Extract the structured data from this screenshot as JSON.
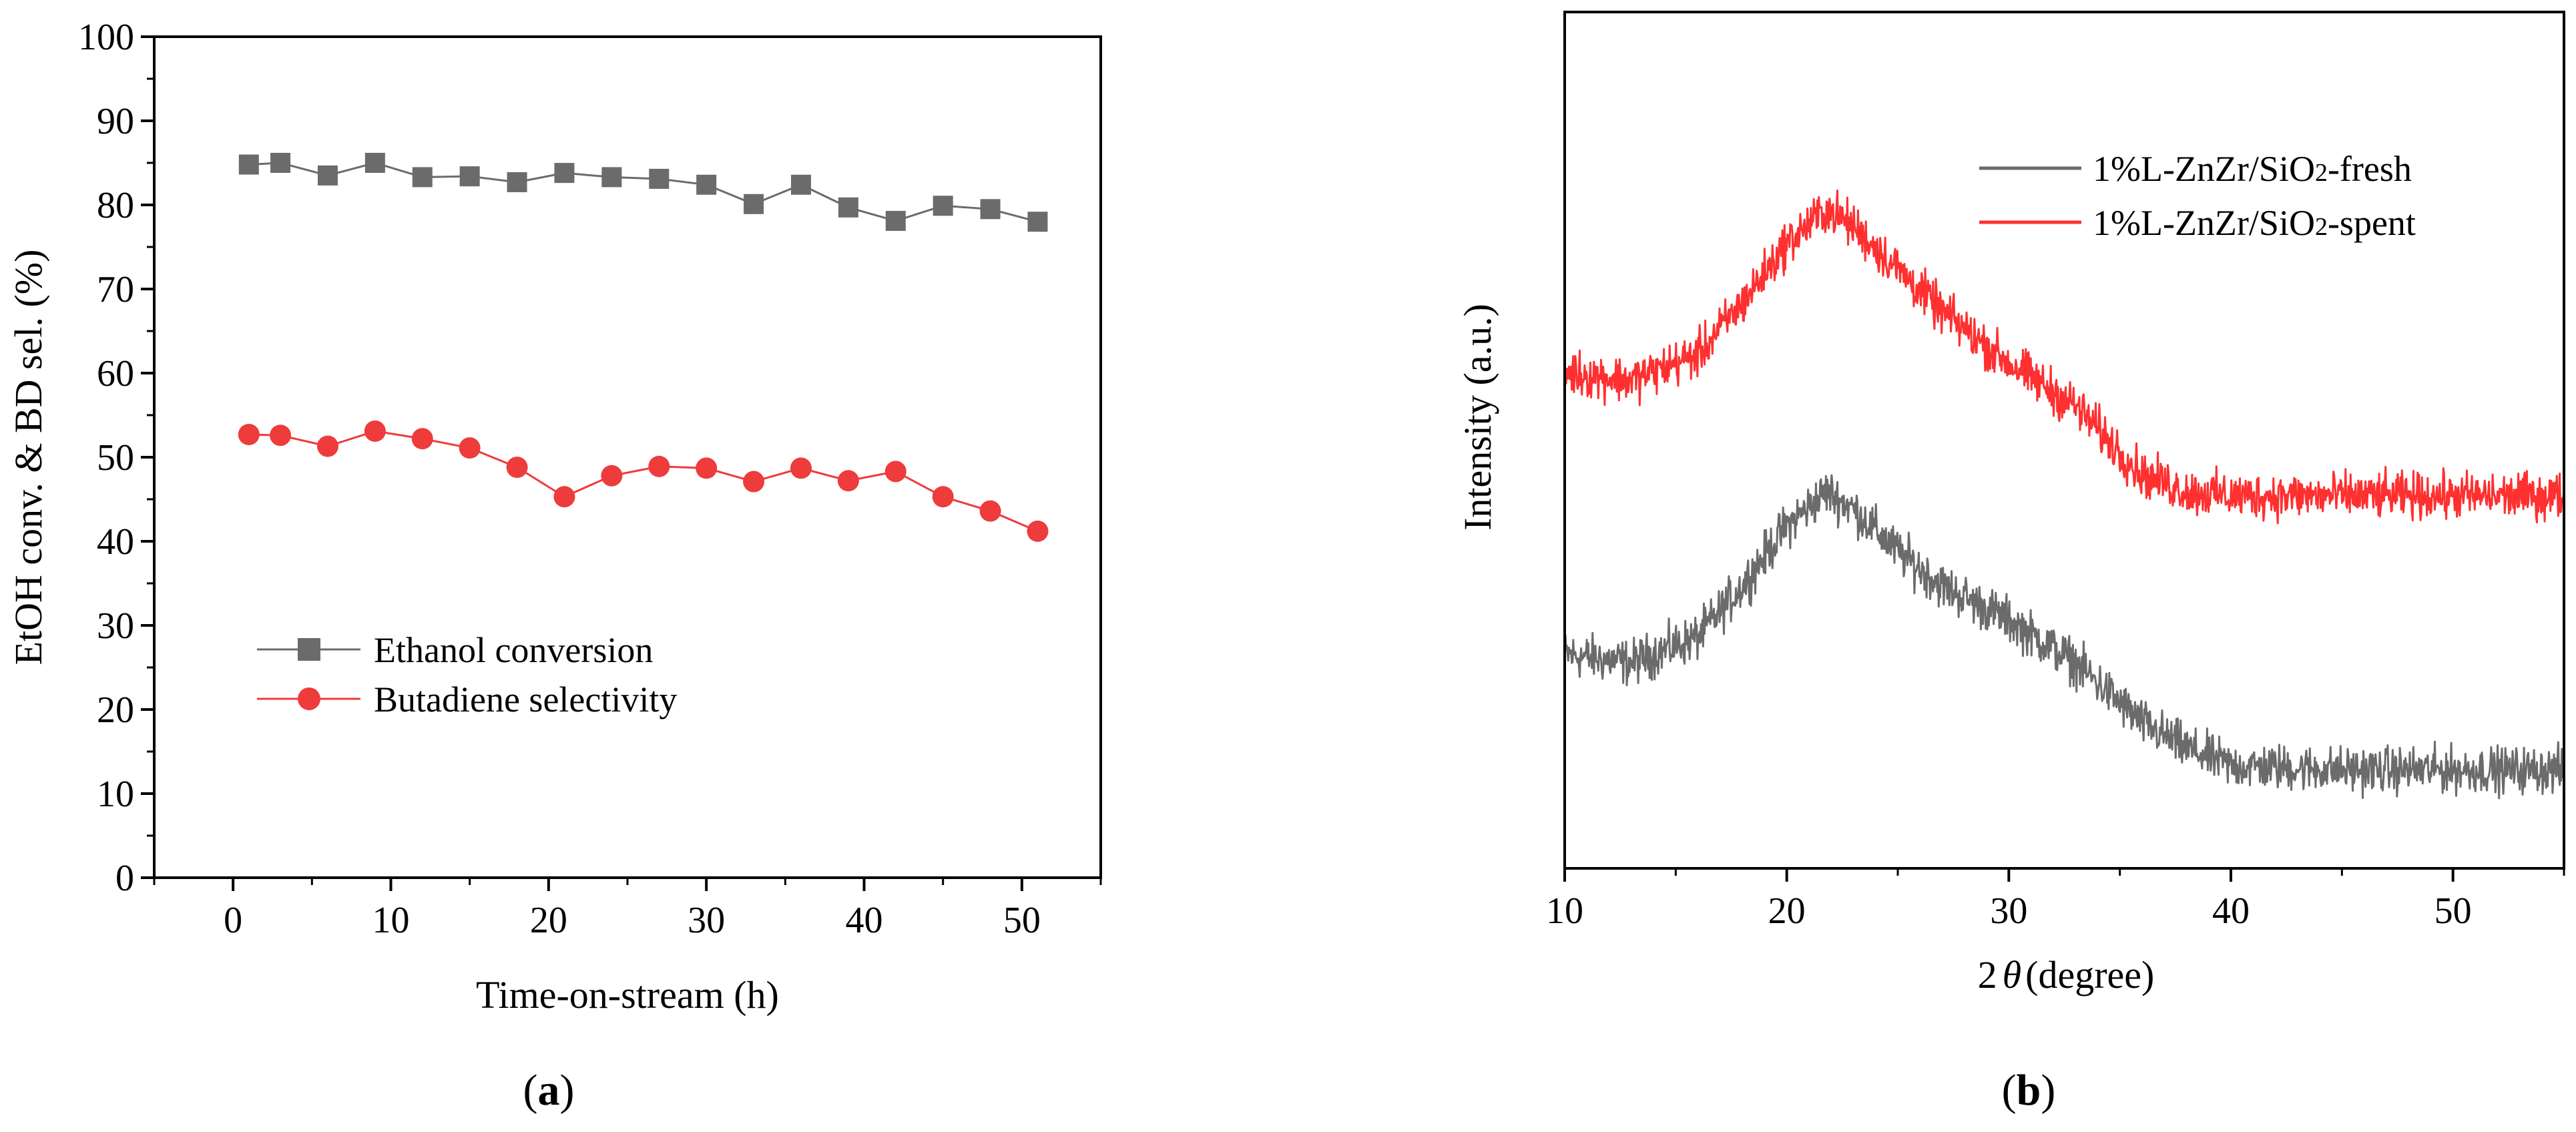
{
  "chart_data": [
    {
      "panel": "a",
      "type": "line",
      "title": "",
      "xlabel": "Time-on-stream (h)",
      "ylabel": "EtOH conv. & BD sel. (%)",
      "xlim": [
        -5,
        55
      ],
      "ylim": [
        0,
        100
      ],
      "xticks": [
        0,
        10,
        20,
        30,
        40,
        50
      ],
      "yticks": [
        0,
        10,
        20,
        30,
        40,
        50,
        60,
        70,
        80,
        90,
        100
      ],
      "x": [
        1,
        3,
        6,
        9,
        12,
        15,
        18,
        21,
        24,
        27,
        30,
        33,
        36,
        39,
        42,
        45,
        48,
        51
      ],
      "series": [
        {
          "name": "Ethanol conversion",
          "color": "#6b6b6b",
          "marker": "square",
          "values": [
            84.8,
            85.0,
            83.5,
            85.0,
            83.3,
            83.4,
            82.7,
            83.8,
            83.3,
            83.1,
            82.4,
            80.1,
            82.4,
            79.7,
            78.1,
            79.9,
            79.5,
            78.0
          ]
        },
        {
          "name": "Butadiene selectivity",
          "color": "#ee3b3b",
          "marker": "circle",
          "values": [
            52.7,
            52.6,
            51.3,
            53.1,
            52.2,
            51.1,
            48.8,
            45.3,
            47.8,
            48.9,
            48.7,
            47.1,
            48.7,
            47.2,
            48.3,
            45.3,
            43.6,
            41.2
          ]
        }
      ],
      "legend_position": "center-left"
    },
    {
      "panel": "b",
      "type": "line",
      "title": "",
      "xlabel": "2θ (degree)",
      "ylabel": "Intensity (a.u.)",
      "xlim": [
        10,
        55
      ],
      "ylim": [
        0,
        100
      ],
      "xticks": [
        10,
        20,
        30,
        40,
        50
      ],
      "yticks": [],
      "series": [
        {
          "name": "1%L-ZnZr/SiO2-fresh",
          "color": "#6b6b6b",
          "profile_x": [
            10,
            13,
            16,
            18,
            20,
            21.8,
            23,
            25,
            27,
            30,
            33,
            36,
            38,
            40,
            45,
            50,
            55
          ],
          "profile_y": [
            25,
            24,
            27,
            33,
            40,
            44,
            42,
            37,
            33,
            29,
            24,
            17,
            14,
            12,
            11.5,
            11.5,
            11.5
          ],
          "noise": 2.6
        },
        {
          "name": "1%L-ZnZr/SiO2-spent",
          "color": "#ff3030",
          "profile_x": [
            10,
            13,
            16,
            18,
            20,
            21.8,
            23,
            25,
            27,
            30,
            33,
            36,
            38,
            40,
            45,
            50,
            55
          ],
          "profile_y": [
            58,
            57,
            60,
            66,
            73,
            77,
            75,
            70,
            65,
            59,
            54,
            46,
            44,
            43.5,
            43.5,
            43.5,
            43.5
          ],
          "noise": 2.6
        }
      ],
      "legend_position": "top-right"
    }
  ],
  "panel_labels": {
    "a": "a",
    "b": "b",
    "open": "(",
    "close": ")"
  },
  "legend_b_labels": {
    "fresh_prefix": "1%L-ZnZr/SiO",
    "fresh_sub": "2",
    "fresh_suffix": "-fresh",
    "spent_prefix": "1%L-ZnZr/SiO",
    "spent_sub": "2",
    "spent_suffix": "-spent"
  },
  "axis_b_xlabel": {
    "prefix": "2",
    "theta": "θ",
    "suffix": "(degree)"
  }
}
